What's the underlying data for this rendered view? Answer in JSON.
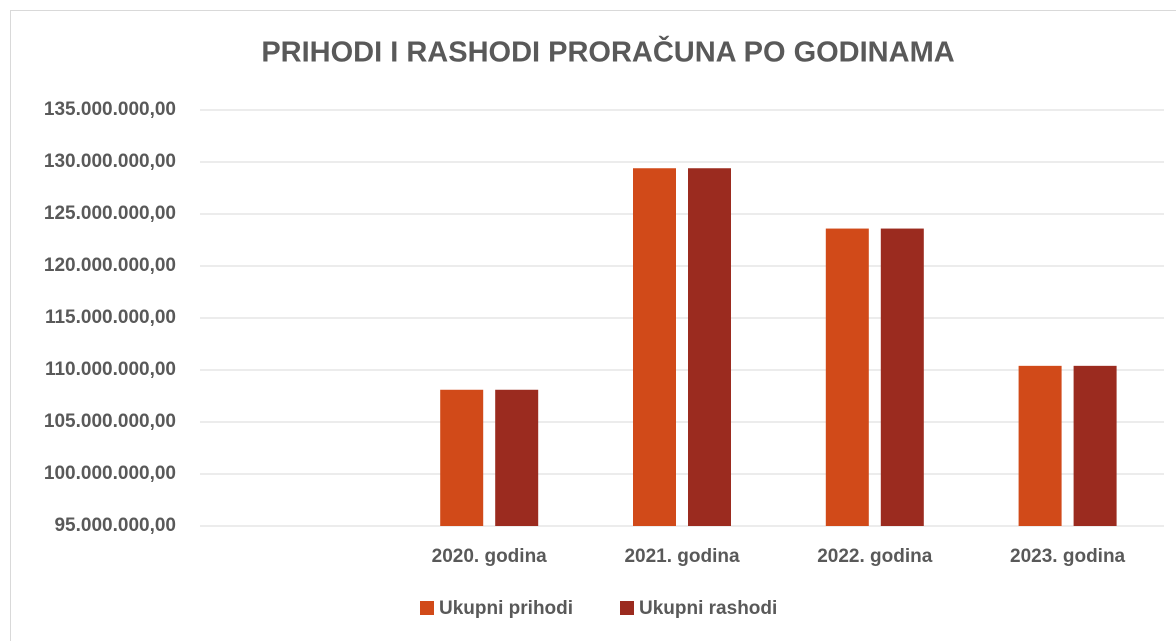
{
  "chart_data": {
    "type": "bar",
    "title": "PRIHODI I RASHODI PRORAČUNA PO GODINAMA",
    "categories": [
      null,
      "2020. godina",
      "2021. godina",
      "2022. godina",
      "2023. godina"
    ],
    "series": [
      {
        "name": "Ukupni prihodi",
        "color": "#d14a19",
        "values": [
          null,
          108100000,
          129400000,
          123600000,
          110400000
        ]
      },
      {
        "name": "Ukupni rashodi",
        "color": "#9b2b1f",
        "values": [
          null,
          108100000,
          129400000,
          123600000,
          110400000
        ]
      }
    ],
    "ylim": [
      95000000,
      135000000
    ],
    "yticks": [
      {
        "value": 95000000,
        "label": "95.000.000,00"
      },
      {
        "value": 100000000,
        "label": "100.000.000,00"
      },
      {
        "value": 105000000,
        "label": "105.000.000,00"
      },
      {
        "value": 110000000,
        "label": "110.000.000,00"
      },
      {
        "value": 115000000,
        "label": "115.000.000,00"
      },
      {
        "value": 120000000,
        "label": "120.000.000,00"
      },
      {
        "value": 125000000,
        "label": "125.000.000,00"
      },
      {
        "value": 130000000,
        "label": "130.000.000,00"
      },
      {
        "value": 135000000,
        "label": "135.000.000,00"
      }
    ],
    "grid": true,
    "legend": "bottom"
  }
}
